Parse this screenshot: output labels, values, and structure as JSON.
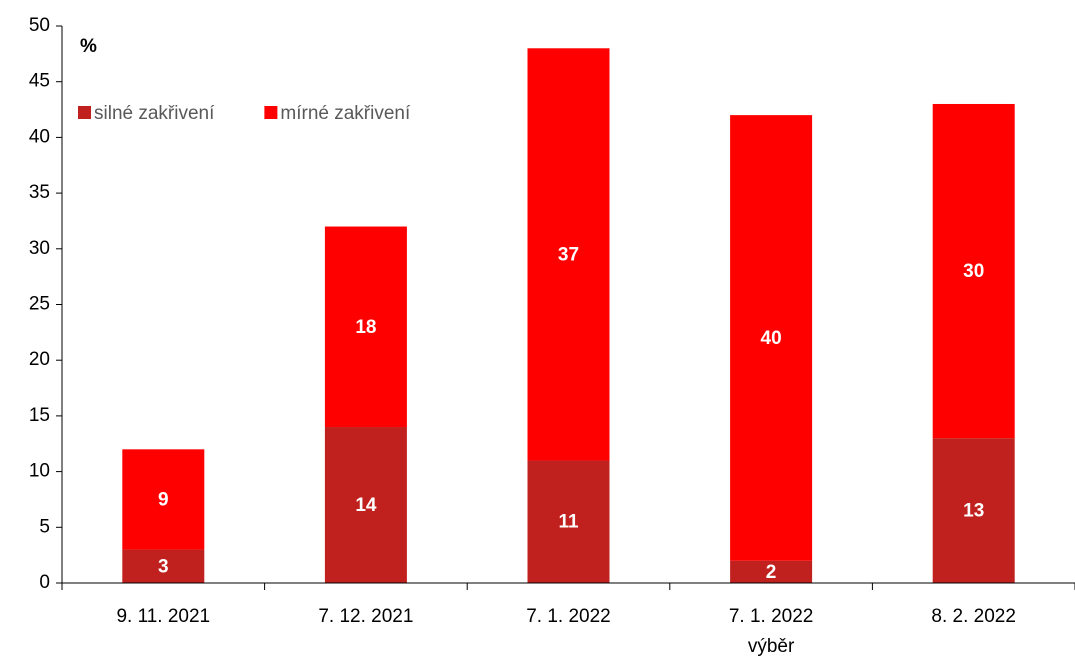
{
  "chart_data": {
    "type": "stacked-bar",
    "unit_label": "%",
    "categories": [
      "9. 11. 2021",
      "7. 12. 2021",
      "7.  1. 2022",
      "7.  1. 2022\nvýběr",
      "8. 2. 2022"
    ],
    "series": [
      {
        "name": "silné zakřivení",
        "color": "#c0201e",
        "values": [
          3,
          14,
          11,
          2,
          13
        ]
      },
      {
        "name": "mírné zakřivení",
        "color": "#ff0000",
        "values": [
          9,
          18,
          37,
          40,
          30
        ]
      }
    ],
    "ylim": [
      0,
      50
    ],
    "yticks": [
      0,
      5,
      10,
      15,
      20,
      25,
      30,
      35,
      40,
      45,
      50
    ],
    "legend": "upper left"
  }
}
